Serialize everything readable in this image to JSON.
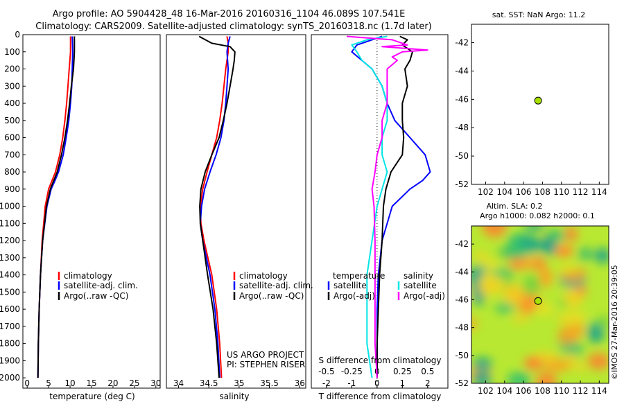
{
  "header": {
    "line1": "Argo profile: AO 5904428_48 16-Mar-2016 20160316_1104 46.089S 107.541E",
    "line2": "Climatology: CARS2009. Satellite-adjusted climatology: synTS_20160318.nc (1.7d later)"
  },
  "right_top_title": "sat. SST: NaN Argo: 11.2",
  "altim_title1": "Altim. SLA: 0.2",
  "altim_title2": "Argo h1000: 0.082 h2000: 0.1",
  "credit": "US ARGO PROJECT",
  "pi": "PI: STEPHEN RISER",
  "copyright": "©IMOS 27-Mar-2016 20:39:05",
  "colors": {
    "climatology": "#ff0000",
    "satellite": "#0000ff",
    "argo": "#000000",
    "salinity_satellite": "#00e5e5",
    "salinity_argo": "#ff00ff",
    "marker": "#a8e000"
  },
  "chart_data": [
    {
      "type": "line",
      "xlabel": "temperature (deg C)",
      "xlim": [
        -1,
        31
      ],
      "xticks": [
        "0",
        "5",
        "10",
        "15",
        "20",
        "25",
        "30"
      ],
      "ylim": [
        0,
        2060
      ],
      "yticks": [
        "0",
        "100",
        "200",
        "300",
        "400",
        "500",
        "600",
        "700",
        "800",
        "900",
        "1000",
        "1100",
        "1200",
        "1300",
        "1400",
        "1500",
        "1600",
        "1700",
        "1800",
        "1900",
        "2000"
      ],
      "legend": [
        "climatology",
        "satellite-adj. clim.",
        "Argo(..raw -QC)"
      ],
      "series": [
        {
          "name": "climatology",
          "depth": [
            10,
            100,
            200,
            300,
            400,
            500,
            600,
            700,
            800,
            850,
            900,
            1000,
            1200,
            1400,
            1600,
            1800,
            2000
          ],
          "values": [
            10.1,
            10.1,
            9.8,
            9.5,
            9.2,
            8.8,
            8.3,
            7.6,
            6.6,
            5.8,
            5.0,
            4.2,
            3.5,
            3.1,
            2.8,
            2.6,
            2.5
          ]
        },
        {
          "name": "satellite-adj. clim.",
          "depth": [
            10,
            100,
            200,
            300,
            400,
            500,
            600,
            700,
            800,
            850,
            900,
            1000,
            1200,
            1400,
            1600,
            1800,
            2000
          ],
          "values": [
            10.5,
            10.6,
            10.5,
            10.4,
            10.1,
            9.7,
            9.1,
            8.4,
            7.3,
            6.5,
            5.6,
            4.6,
            3.6,
            3.1,
            2.8,
            2.6,
            2.5
          ]
        },
        {
          "name": "Argo(..raw -QC)",
          "depth": [
            10,
            100,
            200,
            300,
            400,
            500,
            600,
            700,
            800,
            850,
            900,
            1000,
            1200,
            1400,
            1600,
            1800,
            2000
          ],
          "values": [
            11.0,
            11.0,
            10.8,
            10.3,
            9.9,
            9.4,
            8.8,
            8.0,
            7.0,
            6.2,
            5.4,
            4.5,
            3.6,
            3.1,
            2.8,
            2.6,
            2.5
          ]
        }
      ]
    },
    {
      "type": "line",
      "xlabel": "salinity",
      "xlim": [
        33.8,
        36.1
      ],
      "xticks": [
        "34",
        "34.5",
        "35",
        "35.5",
        "36"
      ],
      "ylim": [
        0,
        2060
      ],
      "legend": [
        "climatology",
        "satellite-adj. clim.",
        "Argo(..raw -QC)"
      ],
      "series": [
        {
          "name": "climatology",
          "depth": [
            10,
            50,
            100,
            200,
            300,
            400,
            500,
            600,
            700,
            800,
            900,
            1000,
            1100,
            1200,
            1400,
            1600,
            1800,
            2000
          ],
          "values": [
            34.8,
            34.82,
            34.82,
            34.78,
            34.75,
            34.72,
            34.68,
            34.63,
            34.55,
            34.47,
            34.4,
            34.36,
            34.37,
            34.42,
            34.55,
            34.63,
            34.68,
            34.71
          ]
        },
        {
          "name": "satellite-adj. clim.",
          "depth": [
            10,
            50,
            100,
            200,
            300,
            400,
            500,
            600,
            700,
            800,
            900,
            1000,
            1100,
            1200,
            1400,
            1600,
            1800,
            2000
          ],
          "values": [
            34.85,
            34.82,
            34.8,
            34.82,
            34.8,
            34.78,
            34.75,
            34.7,
            34.62,
            34.52,
            34.43,
            34.38,
            34.36,
            34.4,
            34.52,
            34.6,
            34.65,
            34.68
          ]
        },
        {
          "name": "Argo(..raw -QC)",
          "depth": [
            10,
            50,
            70,
            100,
            150,
            200,
            300,
            400,
            500,
            600,
            700,
            800,
            900,
            1000,
            1100,
            1200,
            1400,
            1600,
            1800,
            2000
          ],
          "values": [
            34.34,
            34.55,
            34.85,
            34.93,
            34.92,
            34.9,
            34.85,
            34.8,
            34.74,
            34.67,
            34.55,
            34.44,
            34.37,
            34.35,
            34.36,
            34.4,
            34.48,
            34.57,
            34.63,
            34.67
          ]
        }
      ]
    },
    {
      "type": "line",
      "xlabel": "T difference from climatology",
      "x2label": "S difference from climatology",
      "xlim": [
        -2.6,
        2.8
      ],
      "xticks": [
        "-2",
        "-1",
        "0",
        "1",
        "2"
      ],
      "x2ticks": [
        "-0.5",
        "-0.25",
        "0",
        "0.25",
        "0.5"
      ],
      "ylim": [
        0,
        2060
      ],
      "legend_temperature": {
        "title": "temperature",
        "items": [
          "satellite",
          "Argo(-adj)"
        ]
      },
      "legend_salinity": {
        "title": "salinity",
        "items": [
          "satellite",
          "Argo(-adj)"
        ]
      },
      "series": [
        {
          "name": "satellite",
          "group": "temperature",
          "depth": [
            10,
            30,
            60,
            100,
            150,
            200,
            300,
            400,
            500,
            600,
            700,
            800,
            850,
            900,
            1000,
            1200,
            1400,
            1600,
            1800,
            2000
          ],
          "values": [
            0.2,
            -0.2,
            -0.8,
            -1.0,
            -0.6,
            -0.2,
            0.2,
            0.4,
            0.7,
            1.3,
            1.9,
            2.1,
            1.8,
            1.3,
            0.6,
            0.2,
            0.05,
            0.0,
            0.0,
            0.0
          ]
        },
        {
          "name": "Argo(-adj)",
          "group": "temperature",
          "depth": [
            10,
            30,
            60,
            100,
            150,
            200,
            300,
            400,
            500,
            600,
            700,
            800,
            900,
            1000,
            1200,
            1400,
            1600,
            1800,
            2000
          ],
          "values": [
            0.9,
            1.2,
            1.0,
            1.4,
            1.3,
            1.1,
            1.2,
            1.0,
            1.0,
            1.05,
            1.0,
            0.55,
            0.35,
            0.25,
            0.2,
            0.1,
            0.05,
            0.0,
            0.0
          ]
        },
        {
          "name": "satellite",
          "group": "salinity",
          "depth": [
            10,
            30,
            60,
            100,
            150,
            200,
            300,
            400,
            500,
            600,
            700,
            800,
            900,
            1000,
            1200,
            1400,
            1600,
            1800,
            2000
          ],
          "values": [
            0.1,
            -0.1,
            -0.25,
            -0.2,
            -0.15,
            -0.05,
            0.05,
            0.1,
            0.1,
            0.05,
            0.05,
            0.1,
            0.05,
            0.0,
            -0.05,
            -0.1,
            -0.1,
            -0.1,
            -0.05
          ]
        },
        {
          "name": "Argo(-adj)",
          "group": "salinity",
          "depth": [
            10,
            30,
            60,
            70,
            90,
            100,
            130,
            150,
            200,
            300,
            400,
            500,
            600,
            700,
            800,
            900,
            1000,
            1200,
            1400,
            1600,
            1800,
            2000
          ],
          "values": [
            -0.3,
            0.15,
            0.3,
            0.05,
            0.5,
            0.25,
            0.15,
            0.2,
            0.1,
            0.1,
            0.1,
            0.05,
            0.05,
            0.0,
            -0.02,
            -0.05,
            -0.03,
            -0.02,
            -0.02,
            -0.02,
            -0.02,
            0.0
          ]
        }
      ]
    },
    {
      "type": "scatter",
      "xlim": [
        100.5,
        115.0
      ],
      "ylim": [
        -52,
        -40.7
      ],
      "xticks": [
        "102",
        "104",
        "106",
        "108",
        "110",
        "112",
        "114"
      ],
      "yticks": [
        "-42",
        "-44",
        "-46",
        "-48",
        "-50",
        "-52"
      ],
      "points": [
        {
          "x": 107.54,
          "y": -46.09
        }
      ]
    },
    {
      "type": "heatmap",
      "xlim": [
        100.5,
        115.0
      ],
      "ylim": [
        -52,
        -40.7
      ],
      "xticks": [
        "102",
        "104",
        "106",
        "108",
        "110",
        "112",
        "114"
      ],
      "yticks": [
        "-42",
        "-44",
        "-46",
        "-48",
        "-50",
        "-52"
      ],
      "points": [
        {
          "x": 107.54,
          "y": -46.09
        }
      ]
    }
  ]
}
